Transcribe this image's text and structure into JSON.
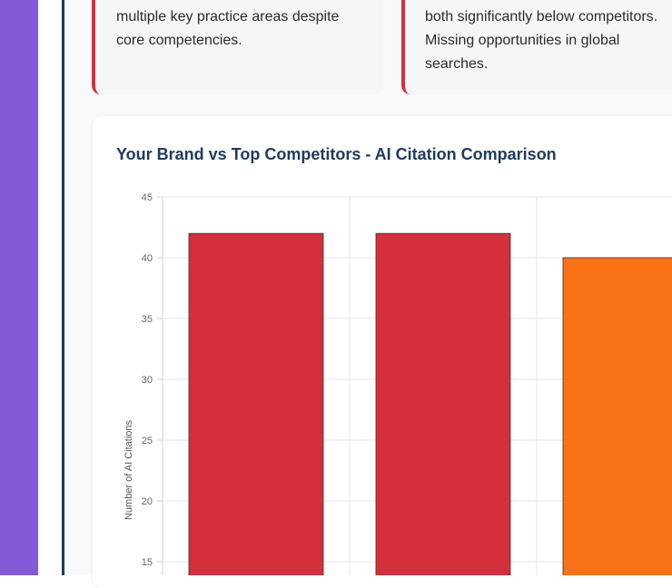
{
  "colors": {
    "sidebar": "#845ad8",
    "frame_border": "#1f3a5f",
    "alert_border": "#d62f3c",
    "title": "#1f3a5f"
  },
  "cards": [
    {
      "text": "multiple key practice areas despite\ncore competencies."
    },
    {
      "text": "both significantly below competitors.\nMissing opportunities in global\nsearches."
    }
  ],
  "chart_data": {
    "type": "bar",
    "title": "Your Brand vs Top Competitors - AI Citation Comparison",
    "xlabel": "",
    "ylabel": "Number of AI Citations",
    "ylim": [
      12,
      45
    ],
    "yticks": [
      15,
      20,
      25,
      30,
      35,
      40,
      45
    ],
    "grid": true,
    "series": [
      {
        "values": [
          42,
          42,
          40
        ],
        "colors": [
          "#d62f3c",
          "#d62f3c",
          "#fa7216"
        ]
      }
    ]
  }
}
